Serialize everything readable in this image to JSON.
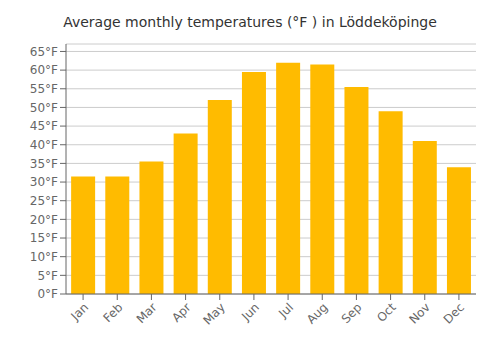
{
  "chart_data": {
    "type": "bar",
    "title": "Average monthly temperatures (°F ) in Löddeköpinge",
    "categories": [
      "Jan",
      "Feb",
      "Mar",
      "Apr",
      "May",
      "Jun",
      "Jul",
      "Aug",
      "Sep",
      "Oct",
      "Nov",
      "Dec"
    ],
    "values": [
      31.5,
      31.5,
      35.5,
      43,
      52,
      59.5,
      62,
      61.5,
      55.5,
      49,
      41,
      34
    ],
    "color": "#FFBB00",
    "ylim": [
      0,
      67
    ],
    "yticks": [
      {
        "value": 0,
        "label": "0°F"
      },
      {
        "value": 5,
        "label": "5°F"
      },
      {
        "value": 10,
        "label": "10°F"
      },
      {
        "value": 15,
        "label": "15°F"
      },
      {
        "value": 20,
        "label": "20°F"
      },
      {
        "value": 25,
        "label": "25°F"
      },
      {
        "value": 30,
        "label": "30°F"
      },
      {
        "value": 35,
        "label": "35°F"
      },
      {
        "value": 40,
        "label": "40°F"
      },
      {
        "value": 45,
        "label": "45°F"
      },
      {
        "value": 50,
        "label": "50°F"
      },
      {
        "value": 55,
        "label": "55°F"
      },
      {
        "value": 60,
        "label": "60°F"
      },
      {
        "value": 65,
        "label": "65°F"
      }
    ],
    "grid": true
  }
}
